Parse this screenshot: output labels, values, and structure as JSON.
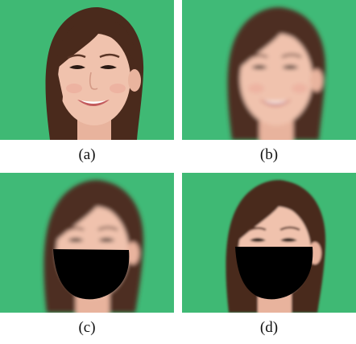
{
  "panels": [
    {
      "id": "a",
      "caption": "(a)",
      "description_state": "original",
      "blurred": false,
      "masked": false
    },
    {
      "id": "b",
      "caption": "(b)",
      "description_state": "blurred",
      "blurred": true,
      "masked": false
    },
    {
      "id": "c",
      "caption": "(c)",
      "description_state": "blurred-masked",
      "blurred": true,
      "masked": true
    },
    {
      "id": "d",
      "caption": "(d)",
      "description_state": "reconstructed-masked",
      "blurred": false,
      "masked": true
    }
  ],
  "colors": {
    "background_green": "#3fb974",
    "hair": "#4a2a1c",
    "skin": "#f0c2ad",
    "mask": "#000000"
  }
}
